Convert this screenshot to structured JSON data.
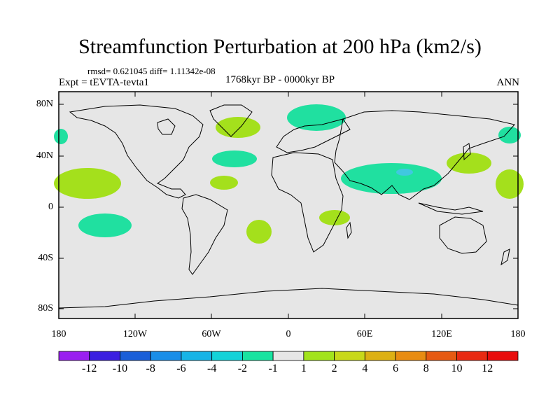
{
  "title": "Streamfunction Perturbation at 200 hPa (km2/s)",
  "stats": "rmsd= 0.621045 diff= 1.11342e-08",
  "experiment": "Expt = tEVTA-tevta1",
  "period": "1768kyr BP - 0000kyr BP",
  "season": "ANN",
  "lat_labels": [
    "80N",
    "40N",
    "0",
    "40S",
    "80S"
  ],
  "lon_labels": [
    "180",
    "120W",
    "60W",
    "0",
    "60E",
    "120E",
    "180"
  ],
  "colorbar": {
    "labels": [
      "-12",
      "-10",
      "-8",
      "-6",
      "-4",
      "-2",
      "-1",
      "1",
      "2",
      "4",
      "6",
      "8",
      "10",
      "12"
    ],
    "colors": [
      "#9a1ff0",
      "#3b1fe0",
      "#1a5fd8",
      "#1a8ee8",
      "#17b4e6",
      "#14d2d8",
      "#18e3a0",
      "#e6e6e6",
      "#a2e31c",
      "#c8d81a",
      "#dcb014",
      "#e88c12",
      "#e65a12",
      "#e82a12",
      "#e80c0c"
    ]
  },
  "colors": {
    "land_gray": "#e6e6e6",
    "neg_green": "#20e0a0",
    "pos_lime": "#a4e01c",
    "neg_cyan": "#40c8e0"
  }
}
